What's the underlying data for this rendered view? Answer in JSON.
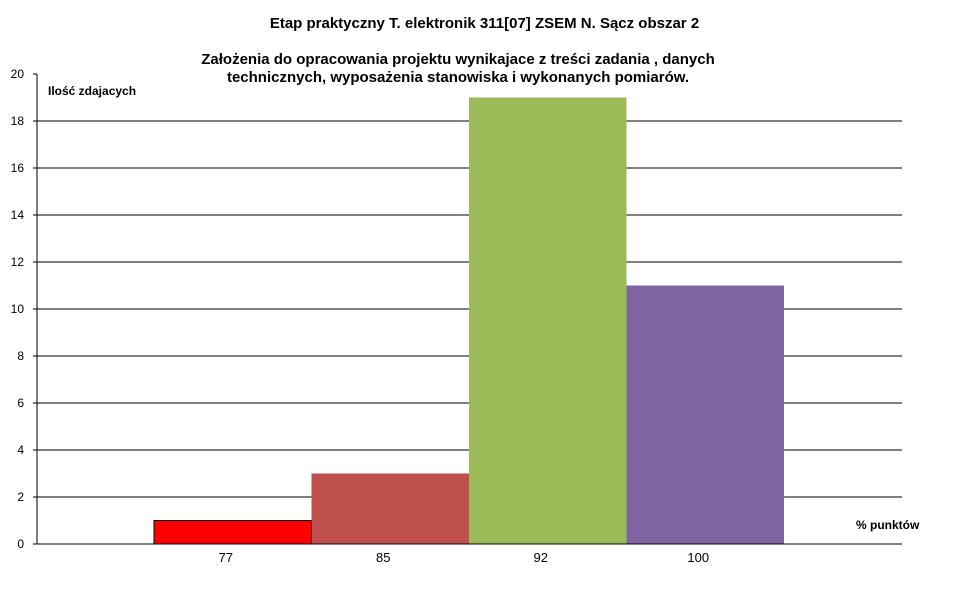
{
  "chart_data": {
    "type": "bar",
    "title": "Etap praktyczny T. elektronik 311[07] ZSEM N. Sącz obszar 2",
    "subtitle_lines": [
      "Założenia do opracowania projektu wynikajace z treści  zadania , danych",
      "technicznych, wyposażenia stanowiska i wykonanych pomiarów."
    ],
    "xlabel": "% punktów",
    "ylabel": "Ilość zdajacych",
    "categories": [
      "77",
      "85",
      "92",
      "100"
    ],
    "values": [
      1,
      3,
      19,
      11
    ],
    "colors": [
      "#ff0000",
      "#c0504d",
      "#9bbb59",
      "#8064a2"
    ],
    "ylim": [
      0,
      20
    ],
    "yticks": [
      0,
      2,
      4,
      6,
      8,
      10,
      12,
      14,
      16,
      18,
      20
    ],
    "grid": true,
    "legend": "none"
  }
}
